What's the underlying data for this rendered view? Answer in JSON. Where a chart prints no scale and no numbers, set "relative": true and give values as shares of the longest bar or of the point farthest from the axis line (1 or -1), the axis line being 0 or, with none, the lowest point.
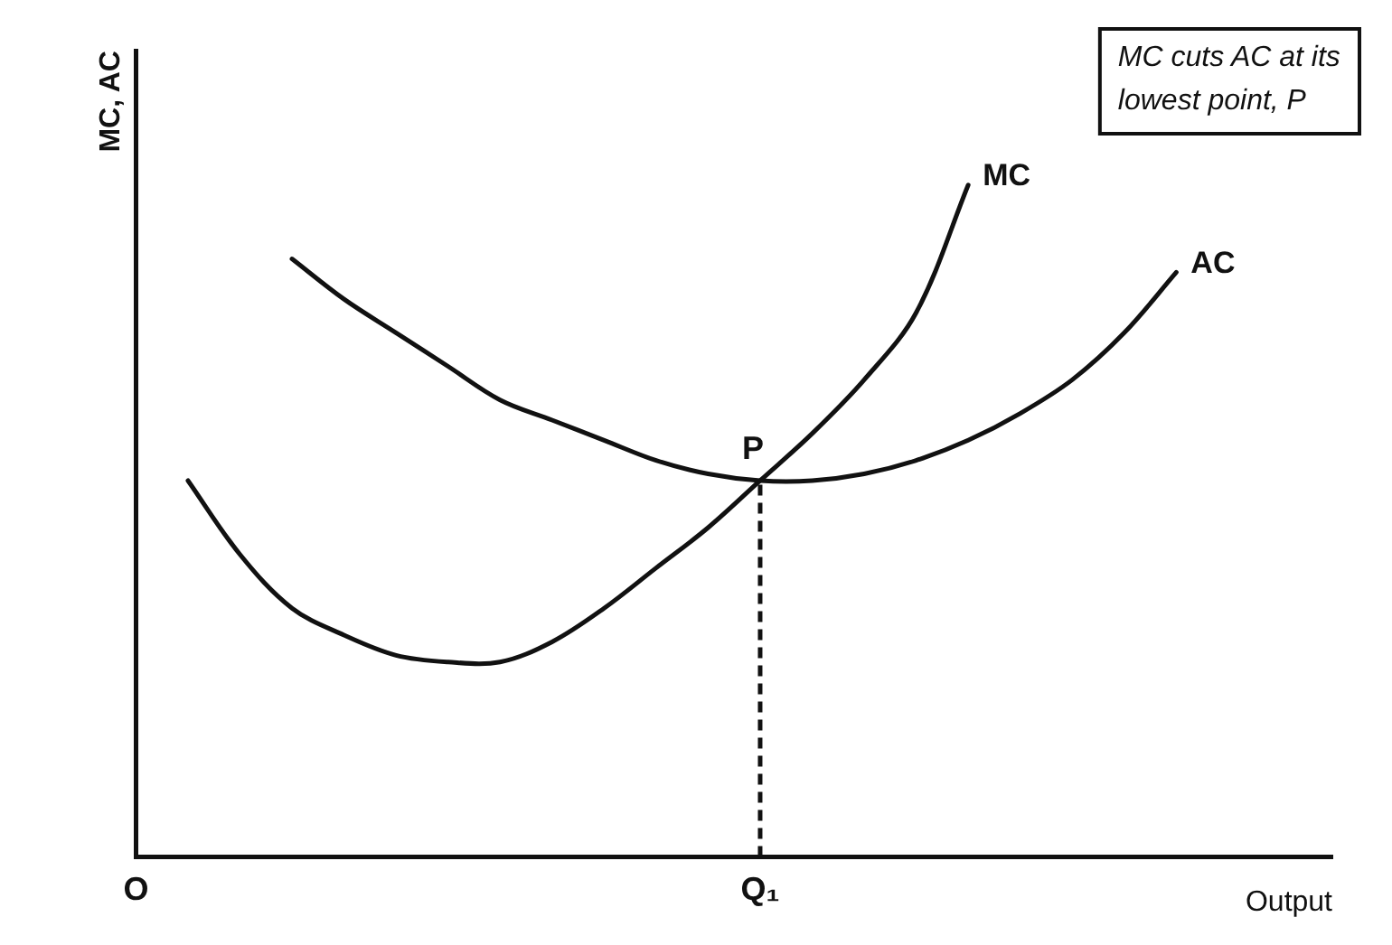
{
  "chart_data": {
    "type": "line",
    "relative": true,
    "ylabel": "MC, AC",
    "xlabel": "Output",
    "categories": [
      "O",
      null,
      null,
      null,
      null,
      null,
      null,
      null,
      null,
      null,
      null,
      null,
      "Q₁",
      null,
      null,
      null,
      null,
      null,
      null,
      null,
      null,
      null,
      null,
      null
    ],
    "series": [
      {
        "name": "MC",
        "color": "#111111",
        "values": [
          null,
          0.56,
          0.45,
          0.37,
          0.33,
          0.3,
          0.29,
          0.29,
          0.32,
          0.37,
          0.43,
          0.49,
          0.56,
          0.63,
          0.71,
          0.81,
          1,
          null,
          null,
          null,
          null,
          null,
          null,
          null
        ]
      },
      {
        "name": "AC",
        "color": "#111111",
        "values": [
          null,
          null,
          null,
          0.89,
          0.83,
          0.78,
          0.73,
          0.68,
          0.65,
          0.62,
          0.59,
          0.57,
          0.56,
          0.56,
          0.57,
          0.59,
          0.62,
          0.66,
          0.71,
          0.78,
          0.87,
          null,
          null,
          null
        ]
      }
    ],
    "ref_lines": [
      {
        "axis": "x",
        "value": "Q₁",
        "label": "P",
        "line_style": "dashed",
        "color": "#111111"
      }
    ],
    "annotations": [
      "MC cuts AC at its lowest point, P"
    ],
    "grid": false,
    "legend": false,
    "marker": "none",
    "line_style": "solid"
  }
}
